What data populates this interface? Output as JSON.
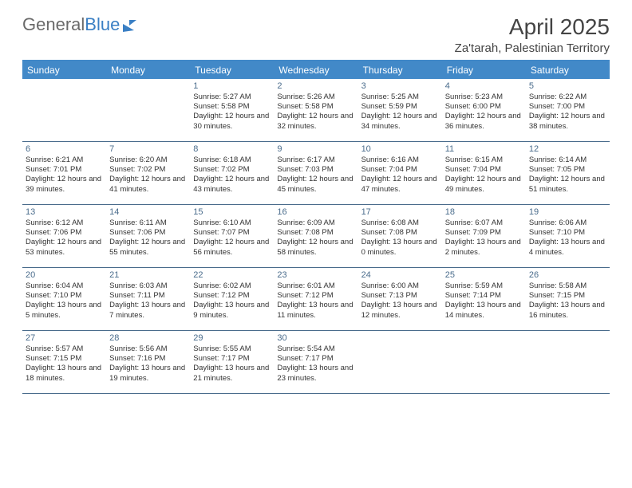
{
  "brand": {
    "part1": "General",
    "part2": "Blue"
  },
  "title": "April 2025",
  "subtitle": "Za'tarah, Palestinian Territory",
  "colors": {
    "header_bg": "#4289c8",
    "header_text": "#ffffff",
    "rule": "#4a6c8c",
    "daynum": "#4a6c8c",
    "text": "#333333"
  },
  "day_headers": [
    "Sunday",
    "Monday",
    "Tuesday",
    "Wednesday",
    "Thursday",
    "Friday",
    "Saturday"
  ],
  "weeks": [
    [
      null,
      null,
      {
        "n": "1",
        "sunrise": "5:27 AM",
        "sunset": "5:58 PM",
        "dl": "12 hours and 30 minutes."
      },
      {
        "n": "2",
        "sunrise": "5:26 AM",
        "sunset": "5:58 PM",
        "dl": "12 hours and 32 minutes."
      },
      {
        "n": "3",
        "sunrise": "5:25 AM",
        "sunset": "5:59 PM",
        "dl": "12 hours and 34 minutes."
      },
      {
        "n": "4",
        "sunrise": "5:23 AM",
        "sunset": "6:00 PM",
        "dl": "12 hours and 36 minutes."
      },
      {
        "n": "5",
        "sunrise": "6:22 AM",
        "sunset": "7:00 PM",
        "dl": "12 hours and 38 minutes."
      }
    ],
    [
      {
        "n": "6",
        "sunrise": "6:21 AM",
        "sunset": "7:01 PM",
        "dl": "12 hours and 39 minutes."
      },
      {
        "n": "7",
        "sunrise": "6:20 AM",
        "sunset": "7:02 PM",
        "dl": "12 hours and 41 minutes."
      },
      {
        "n": "8",
        "sunrise": "6:18 AM",
        "sunset": "7:02 PM",
        "dl": "12 hours and 43 minutes."
      },
      {
        "n": "9",
        "sunrise": "6:17 AM",
        "sunset": "7:03 PM",
        "dl": "12 hours and 45 minutes."
      },
      {
        "n": "10",
        "sunrise": "6:16 AM",
        "sunset": "7:04 PM",
        "dl": "12 hours and 47 minutes."
      },
      {
        "n": "11",
        "sunrise": "6:15 AM",
        "sunset": "7:04 PM",
        "dl": "12 hours and 49 minutes."
      },
      {
        "n": "12",
        "sunrise": "6:14 AM",
        "sunset": "7:05 PM",
        "dl": "12 hours and 51 minutes."
      }
    ],
    [
      {
        "n": "13",
        "sunrise": "6:12 AM",
        "sunset": "7:06 PM",
        "dl": "12 hours and 53 minutes."
      },
      {
        "n": "14",
        "sunrise": "6:11 AM",
        "sunset": "7:06 PM",
        "dl": "12 hours and 55 minutes."
      },
      {
        "n": "15",
        "sunrise": "6:10 AM",
        "sunset": "7:07 PM",
        "dl": "12 hours and 56 minutes."
      },
      {
        "n": "16",
        "sunrise": "6:09 AM",
        "sunset": "7:08 PM",
        "dl": "12 hours and 58 minutes."
      },
      {
        "n": "17",
        "sunrise": "6:08 AM",
        "sunset": "7:08 PM",
        "dl": "13 hours and 0 minutes."
      },
      {
        "n": "18",
        "sunrise": "6:07 AM",
        "sunset": "7:09 PM",
        "dl": "13 hours and 2 minutes."
      },
      {
        "n": "19",
        "sunrise": "6:06 AM",
        "sunset": "7:10 PM",
        "dl": "13 hours and 4 minutes."
      }
    ],
    [
      {
        "n": "20",
        "sunrise": "6:04 AM",
        "sunset": "7:10 PM",
        "dl": "13 hours and 5 minutes."
      },
      {
        "n": "21",
        "sunrise": "6:03 AM",
        "sunset": "7:11 PM",
        "dl": "13 hours and 7 minutes."
      },
      {
        "n": "22",
        "sunrise": "6:02 AM",
        "sunset": "7:12 PM",
        "dl": "13 hours and 9 minutes."
      },
      {
        "n": "23",
        "sunrise": "6:01 AM",
        "sunset": "7:12 PM",
        "dl": "13 hours and 11 minutes."
      },
      {
        "n": "24",
        "sunrise": "6:00 AM",
        "sunset": "7:13 PM",
        "dl": "13 hours and 12 minutes."
      },
      {
        "n": "25",
        "sunrise": "5:59 AM",
        "sunset": "7:14 PM",
        "dl": "13 hours and 14 minutes."
      },
      {
        "n": "26",
        "sunrise": "5:58 AM",
        "sunset": "7:15 PM",
        "dl": "13 hours and 16 minutes."
      }
    ],
    [
      {
        "n": "27",
        "sunrise": "5:57 AM",
        "sunset": "7:15 PM",
        "dl": "13 hours and 18 minutes."
      },
      {
        "n": "28",
        "sunrise": "5:56 AM",
        "sunset": "7:16 PM",
        "dl": "13 hours and 19 minutes."
      },
      {
        "n": "29",
        "sunrise": "5:55 AM",
        "sunset": "7:17 PM",
        "dl": "13 hours and 21 minutes."
      },
      {
        "n": "30",
        "sunrise": "5:54 AM",
        "sunset": "7:17 PM",
        "dl": "13 hours and 23 minutes."
      },
      null,
      null,
      null
    ]
  ],
  "labels": {
    "sunrise": "Sunrise: ",
    "sunset": "Sunset: ",
    "daylight": "Daylight: "
  }
}
